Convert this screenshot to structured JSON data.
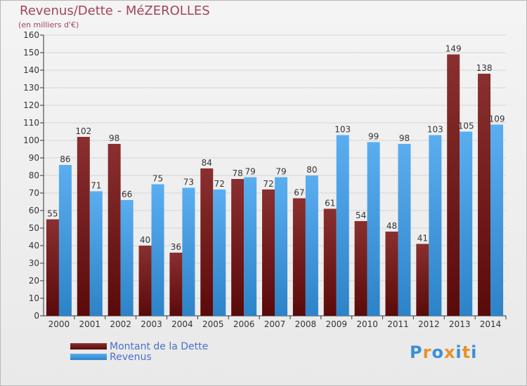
{
  "title": "Revenus/Dette - MéZEROLLES",
  "subtitle": "(en milliers d'€)",
  "logo": {
    "letters": [
      "P",
      "r",
      "o",
      "x",
      "i",
      "t",
      "i"
    ],
    "colors": [
      "#3a8fd8",
      "#e8912a",
      "#3a8fd8",
      "#e8912a",
      "#3a8fd8",
      "#e8912a",
      "#3a8fd8"
    ]
  },
  "chart_data": {
    "type": "bar",
    "title": "Revenus/Dette - MéZEROLLES",
    "ylabel": "(en milliers d'€)",
    "categories": [
      "2000",
      "2001",
      "2002",
      "2003",
      "2004",
      "2005",
      "2006",
      "2007",
      "2008",
      "2009",
      "2010",
      "2011",
      "2012",
      "2013",
      "2014"
    ],
    "series": [
      {
        "name": "Montant de la Dette",
        "color": "#7a1c1c",
        "values": [
          55,
          102,
          98,
          40,
          36,
          84,
          78,
          72,
          67,
          61,
          54,
          48,
          41,
          149,
          138
        ]
      },
      {
        "name": "Revenus",
        "color": "#4a9fe0",
        "values": [
          86,
          71,
          66,
          75,
          73,
          72,
          79,
          79,
          80,
          103,
          99,
          98,
          103,
          105,
          109
        ]
      }
    ],
    "ylim": [
      0,
      160
    ],
    "yticks": [
      0,
      10,
      20,
      30,
      40,
      50,
      60,
      70,
      80,
      90,
      100,
      110,
      120,
      130,
      140,
      150,
      160
    ],
    "grid": true,
    "legend": "bottom-left"
  }
}
